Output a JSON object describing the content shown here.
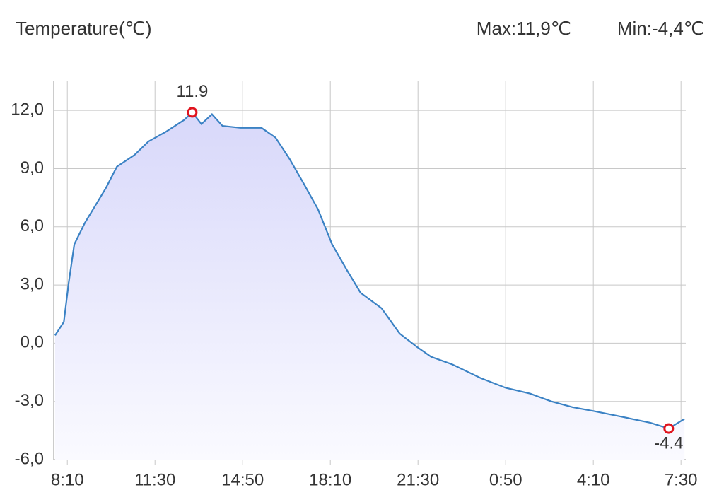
{
  "header": {
    "title": "Temperature(℃)",
    "max": "Max:11,9℃",
    "min": "Min:-4,4℃"
  },
  "chart_data": {
    "type": "line",
    "x": [
      462,
      482,
      493,
      506,
      530,
      578,
      603,
      643,
      675,
      715,
      756,
      775,
      796,
      820,
      844,
      885,
      933,
      965,
      997,
      1030,
      1062,
      1094,
      1127,
      1159,
      1207,
      1248,
      1288,
      1320,
      1369,
      1433,
      1490,
      1546,
      1594,
      1643,
      1691,
      1756,
      1820,
      1862,
      1898
    ],
    "series": [
      {
        "color": "#3b82c4",
        "values": [
          0.4,
          1.1,
          3.1,
          5.1,
          6.2,
          8.0,
          9.1,
          9.7,
          10.4,
          10.9,
          11.5,
          11.9,
          11.3,
          11.8,
          11.2,
          11.1,
          11.1,
          10.6,
          9.5,
          8.2,
          6.9,
          5.1,
          3.8,
          2.6,
          1.8,
          0.5,
          -0.2,
          -0.7,
          -1.1,
          -1.8,
          -2.3,
          -2.6,
          -3.0,
          -3.3,
          -3.5,
          -3.8,
          -4.1,
          -4.4,
          -3.9
        ]
      }
    ],
    "xlim": [
      459,
      1901
    ],
    "xticks": [
      {
        "value": 490,
        "label": "8:10"
      },
      {
        "value": 690,
        "label": "11:30"
      },
      {
        "value": 890,
        "label": "14:50"
      },
      {
        "value": 1090,
        "label": "18:10"
      },
      {
        "value": 1290,
        "label": "21:30"
      },
      {
        "value": 1490,
        "label": "0:50"
      },
      {
        "value": 1690,
        "label": "4:10"
      },
      {
        "value": 1890,
        "label": "7:30"
      }
    ],
    "ylim": [
      -6,
      13.5
    ],
    "yticks": [
      {
        "value": -6,
        "label": "-6,0"
      },
      {
        "value": -3,
        "label": "-3,0"
      },
      {
        "value": 0,
        "label": "0,0"
      },
      {
        "value": 3,
        "label": "3,0"
      },
      {
        "value": 6,
        "label": "6,0"
      },
      {
        "value": 9,
        "label": "9,0"
      },
      {
        "value": 12,
        "label": "12,0"
      }
    ],
    "grid": true,
    "annotations": [
      {
        "x": 775,
        "value": 11.9,
        "color": "#e0141e"
      },
      {
        "x": 1862,
        "value": -4.4,
        "color": "#e0141e"
      }
    ]
  }
}
